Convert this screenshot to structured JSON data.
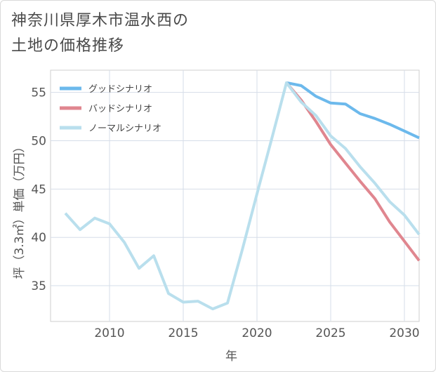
{
  "title_lines": [
    "神奈川県厚木市温水西の",
    "土地の価格推移"
  ],
  "chart_data": {
    "type": "line",
    "xlabel": "年",
    "ylabel": "坪（3.3㎡）単価（万円）",
    "xlim": [
      2006,
      2031
    ],
    "ylim": [
      31.3,
      57.3
    ],
    "x_ticks": [
      2010,
      2015,
      2020,
      2025,
      2030
    ],
    "y_ticks": [
      35,
      40,
      45,
      50,
      55
    ],
    "grid": true,
    "legend_position": "top-left",
    "series": [
      {
        "name": "グッドシナリオ",
        "color": "#6cb9ec",
        "x": [
          2022,
          2023,
          2024,
          2025,
          2026,
          2027,
          2028,
          2029,
          2030,
          2031
        ],
        "values": [
          56.0,
          55.7,
          54.6,
          53.9,
          53.8,
          52.8,
          52.3,
          51.7,
          51.0,
          50.3
        ]
      },
      {
        "name": "バッドシナリオ",
        "color": "#e0868f",
        "x": [
          2022,
          2023,
          2024,
          2025,
          2026,
          2027,
          2028,
          2029,
          2030,
          2031
        ],
        "values": [
          56.0,
          54.2,
          52.0,
          49.6,
          47.7,
          45.8,
          44.0,
          41.6,
          39.6,
          37.6
        ]
      },
      {
        "name": "ノーマルシナリオ",
        "color": "#b9dfed",
        "x": [
          2007,
          2008,
          2009,
          2010,
          2011,
          2012,
          2013,
          2014,
          2015,
          2016,
          2017,
          2018,
          2019,
          2020,
          2021,
          2022,
          2023,
          2024,
          2025,
          2026,
          2027,
          2028,
          2029,
          2030,
          2031
        ],
        "values": [
          42.5,
          40.8,
          42.0,
          41.4,
          39.5,
          36.8,
          38.1,
          34.2,
          33.3,
          33.4,
          32.6,
          33.2,
          38.7,
          44.5,
          50.2,
          56.0,
          54.0,
          52.6,
          50.5,
          49.2,
          47.3,
          45.6,
          43.7,
          42.3,
          40.3
        ]
      }
    ]
  }
}
